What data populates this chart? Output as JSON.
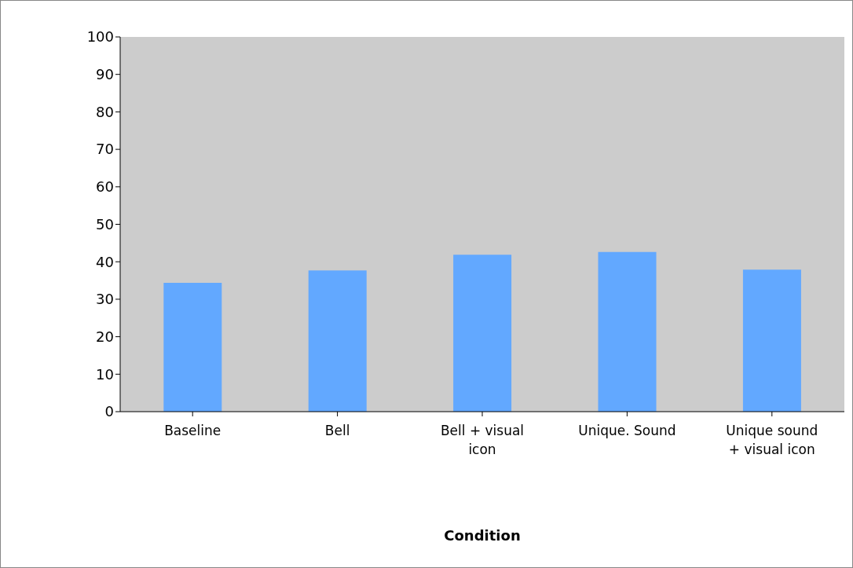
{
  "chart_data": {
    "type": "bar",
    "xlabel": "Condition",
    "categories": [
      "Baseline",
      "Bell",
      "Bell + visual icon",
      "Unique. Sound",
      "Unique sound + visual icon"
    ],
    "values": [
      34.4,
      37.7,
      41.9,
      42.6,
      37.9
    ],
    "color": "#62a8ff",
    "ylim": [
      0,
      100
    ],
    "yticks": [
      0,
      10,
      20,
      30,
      40,
      50,
      60,
      70,
      80,
      90,
      100
    ],
    "grid": false,
    "legend": false
  }
}
